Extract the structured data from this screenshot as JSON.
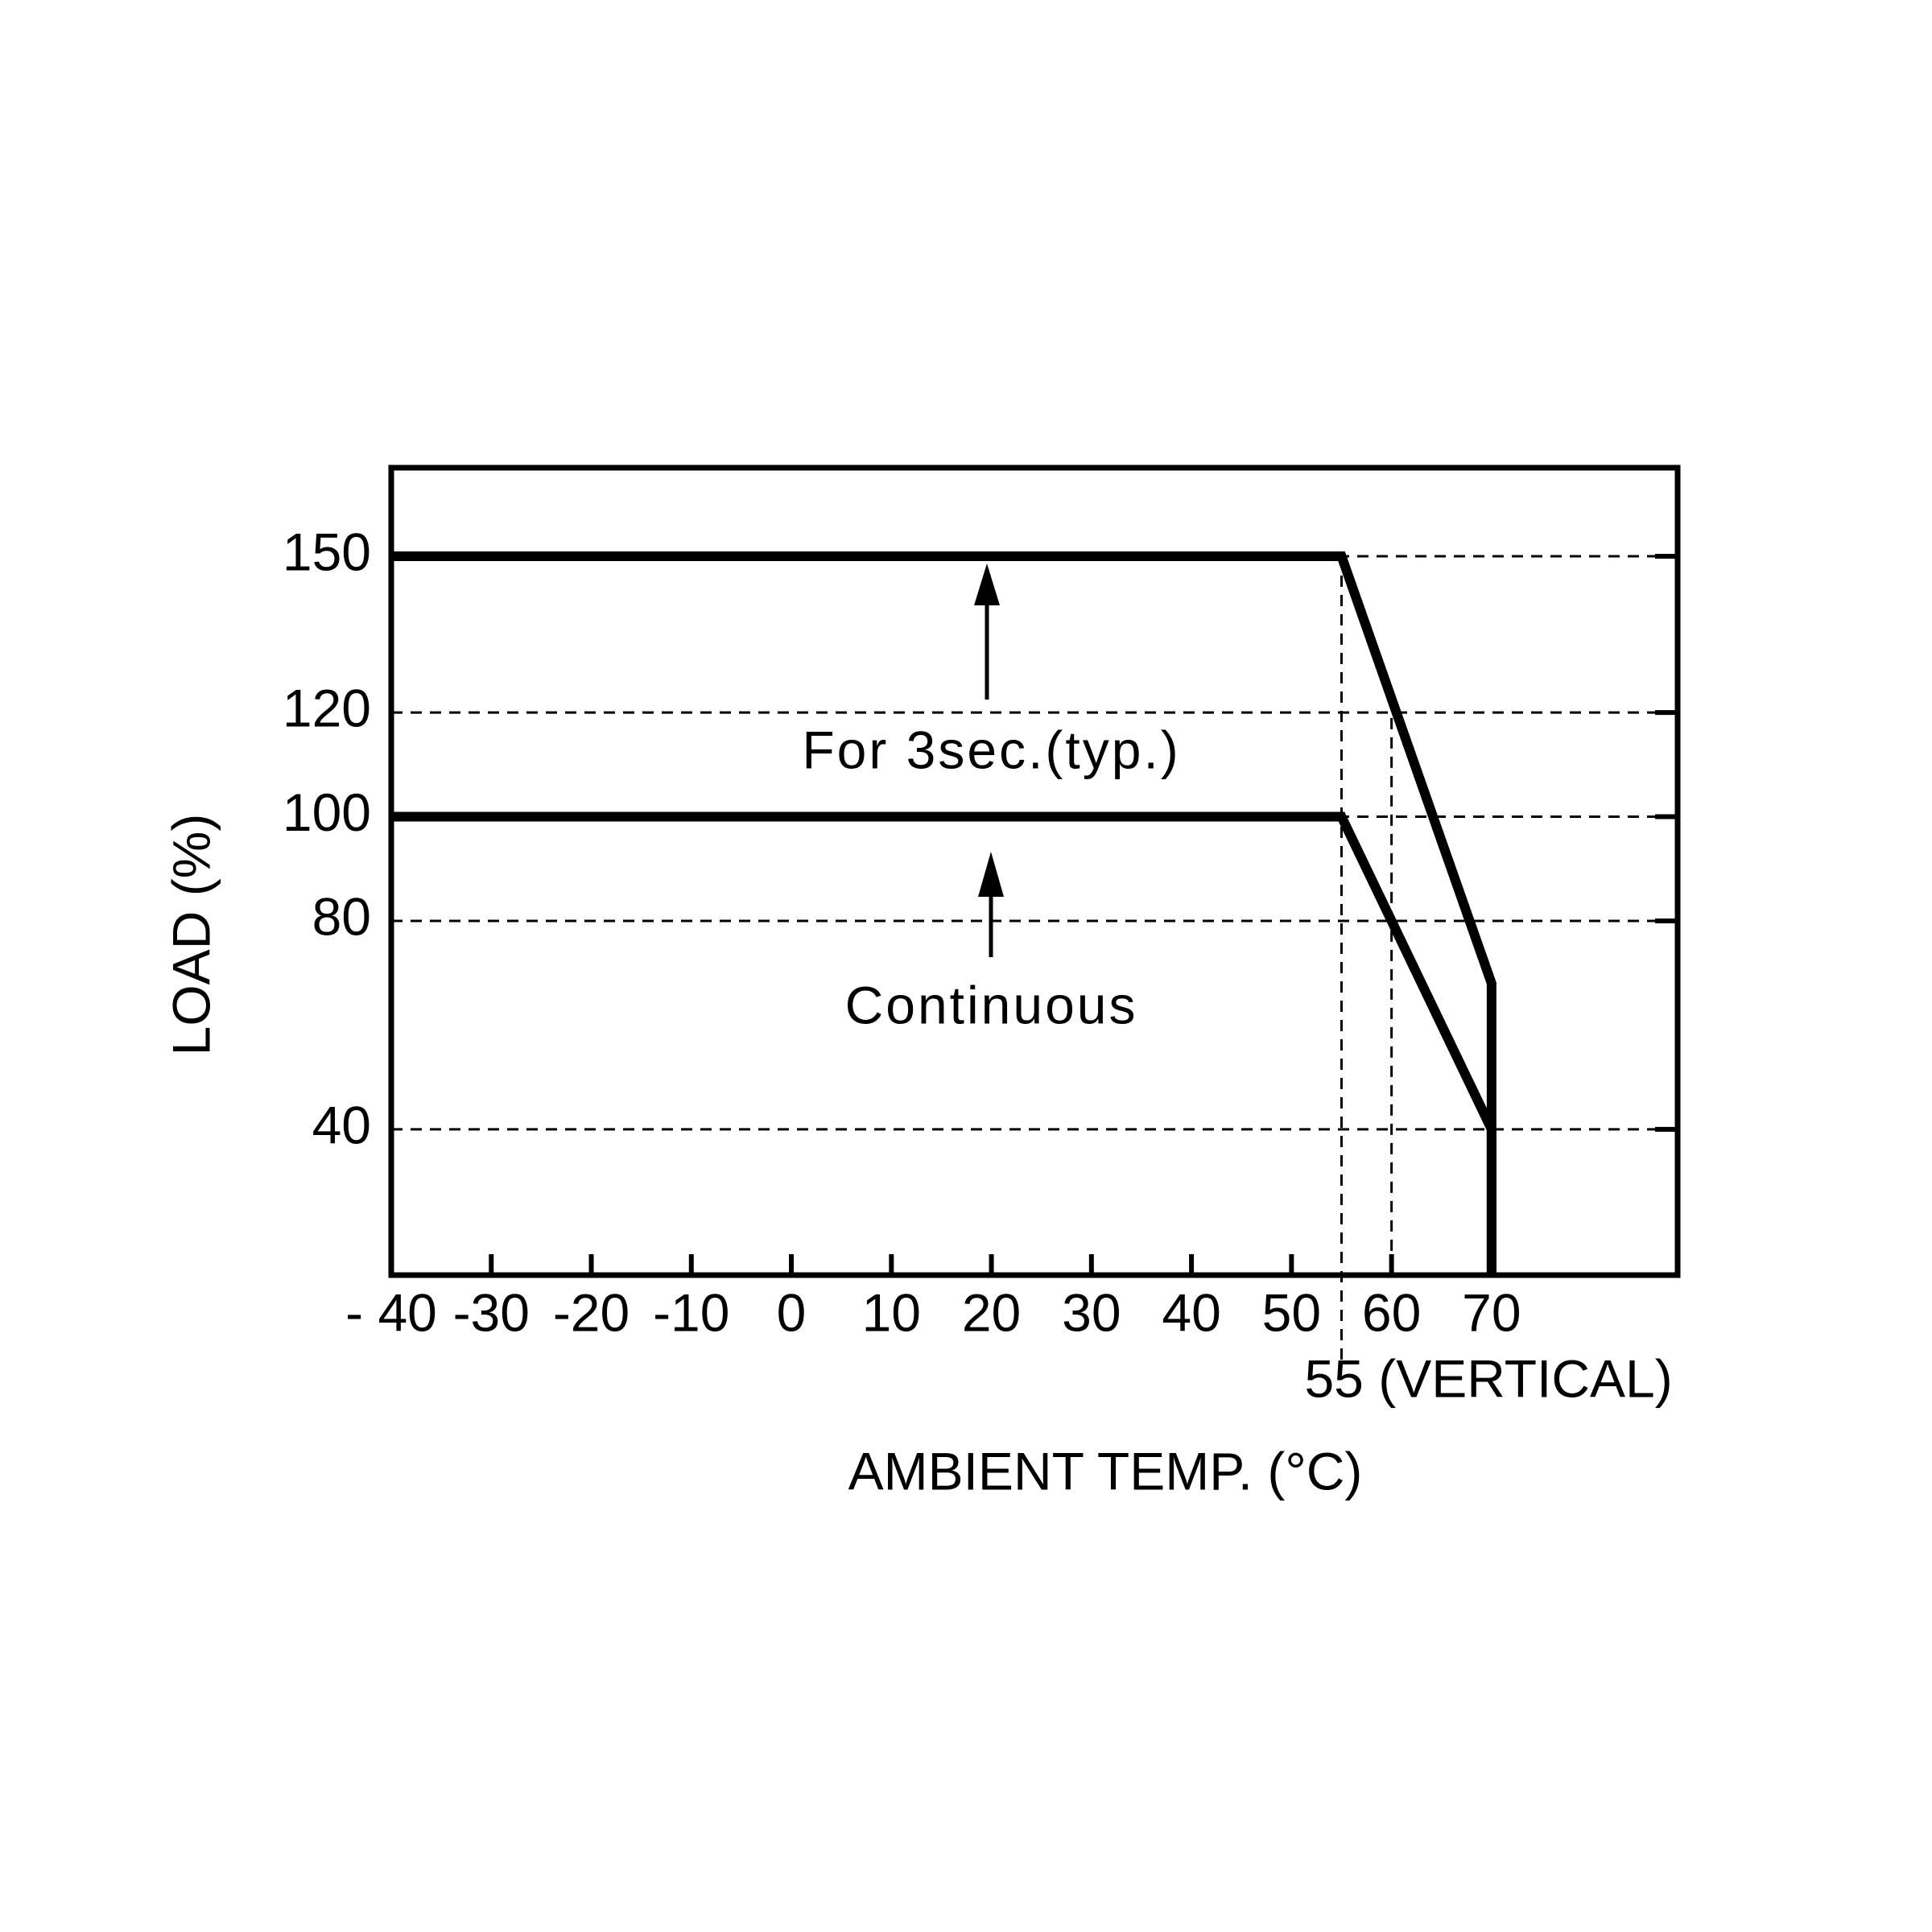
{
  "chart_data": {
    "type": "line",
    "x_label": "AMBIENT TEMP. (°C)",
    "y_label": "LOAD (%)",
    "xlim": [
      -40,
      88.6
    ],
    "ylim": [
      12,
      167
    ],
    "xticks": [
      {
        "value": -40,
        "label": "- 40"
      },
      -30,
      -20,
      -10,
      0,
      10,
      20,
      30,
      40,
      50,
      {
        "value": 55,
        "label": "55 (VERTICAL)"
      },
      60,
      70
    ],
    "yticks": [
      40,
      80,
      100,
      120,
      150
    ],
    "grid": true,
    "color": "#000000",
    "series": [
      {
        "x": [
          -40,
          55,
          70,
          70
        ],
        "values": [
          150,
          150,
          68,
          0
        ]
      },
      {
        "x": [
          -40,
          55,
          70,
          70
        ],
        "values": [
          100,
          100,
          40,
          0
        ]
      }
    ],
    "annotations": [
      {
        "text": "For 3sec.(typ.)",
        "x": 20,
        "y": 112
      },
      {
        "text": "Continuous",
        "x": 20,
        "y": 63
      }
    ]
  }
}
